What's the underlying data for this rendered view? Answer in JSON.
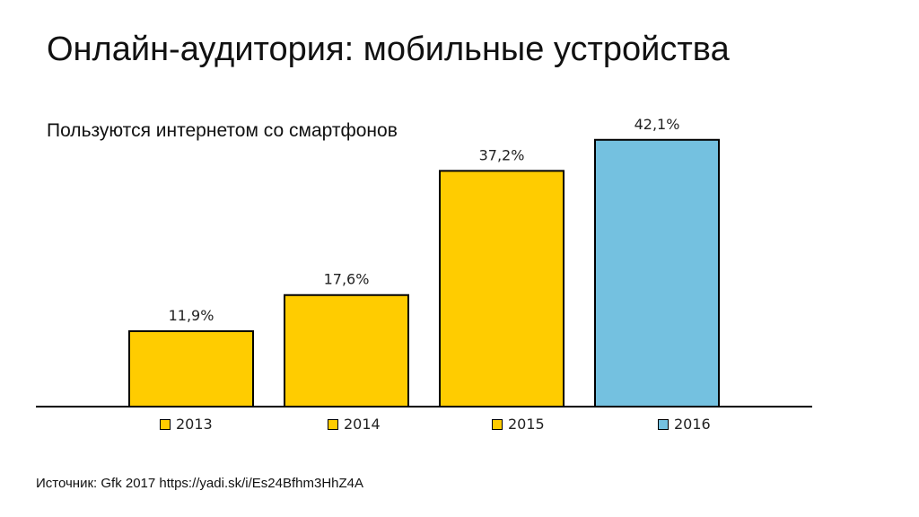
{
  "title": "Онлайн-аудитория: мобильные устройства",
  "subtitle": "Пользуются интернетом со смартфонов",
  "source": "Источник: Gfk 2017 https://yadi.sk/i/Es24Bfhm3HhZ4A",
  "colors": {
    "yellow": "#FFCC00",
    "blue": "#74C1E0",
    "outline": "#000000"
  },
  "chart_data": {
    "type": "bar",
    "categories": [
      "2013",
      "2014",
      "2015",
      "2016"
    ],
    "values": [
      11.9,
      17.6,
      37.2,
      42.1
    ],
    "data_labels": [
      "11,9%",
      "17,6%",
      "37,2%",
      "42,1%"
    ],
    "bar_colors": [
      "#FFCC00",
      "#FFCC00",
      "#FFCC00",
      "#74C1E0"
    ],
    "ylim": [
      0,
      50
    ],
    "grid": false,
    "legend": "bottom",
    "xlabel": "",
    "ylabel": ""
  }
}
